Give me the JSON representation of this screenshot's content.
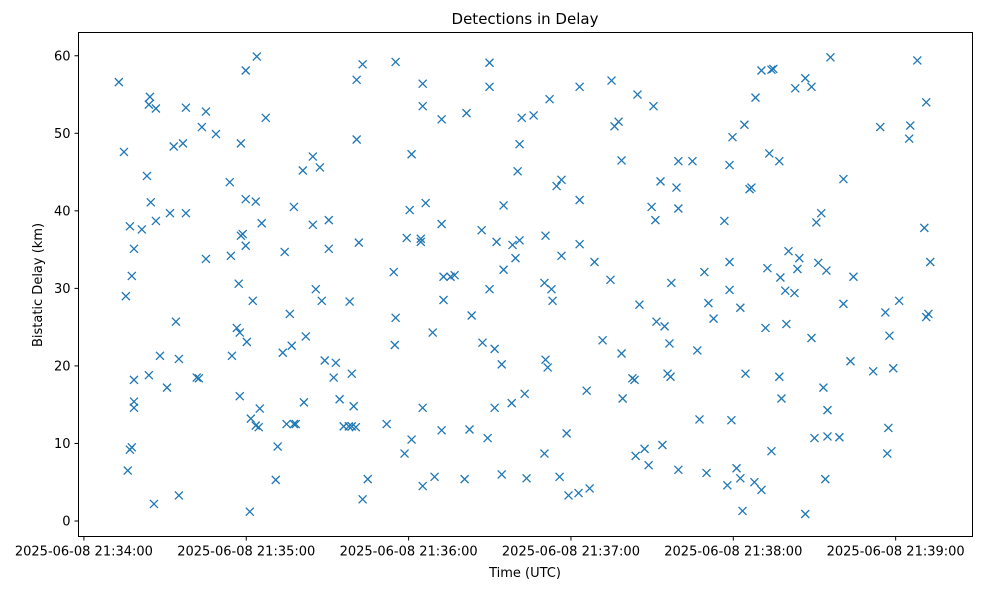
{
  "chart_data": {
    "type": "scatter",
    "title": "Detections in Delay",
    "xlabel": "Time (UTC)",
    "ylabel": "Bistatic Delay (km)",
    "x_origin": "2025-06-08 21:34:00",
    "x_units": "seconds since 2025-06-08 21:34:00",
    "xlim": [
      -2,
      328.4
    ],
    "ylim": [
      -2.0,
      63.0
    ],
    "grid": false,
    "marker": "x",
    "color": "#1f77b4",
    "x_ticks": [
      {
        "value": 0,
        "label": "2025-06-08 21:34:00"
      },
      {
        "value": 60,
        "label": "2025-06-08 21:35:00"
      },
      {
        "value": 120,
        "label": "2025-06-08 21:36:00"
      },
      {
        "value": 180,
        "label": "2025-06-08 21:37:00"
      },
      {
        "value": 240,
        "label": "2025-06-08 21:38:00"
      },
      {
        "value": 300,
        "label": "2025-06-08 21:39:00"
      }
    ],
    "y_ticks": [
      {
        "value": 0,
        "label": "0"
      },
      {
        "value": 10,
        "label": "10"
      },
      {
        "value": 20,
        "label": "20"
      },
      {
        "value": 30,
        "label": "30"
      },
      {
        "value": 40,
        "label": "40"
      },
      {
        "value": 50,
        "label": "50"
      },
      {
        "value": 60,
        "label": "60"
      }
    ],
    "points": [
      [
        12.9,
        56.6
      ],
      [
        14.8,
        47.6
      ],
      [
        15.5,
        29.0
      ],
      [
        16.2,
        6.5
      ],
      [
        17.0,
        38.0
      ],
      [
        17.0,
        9.2
      ],
      [
        17.7,
        31.6
      ],
      [
        17.7,
        9.5
      ],
      [
        18.5,
        35.1
      ],
      [
        18.5,
        18.2
      ],
      [
        18.5,
        15.4
      ],
      [
        18.5,
        14.6
      ],
      [
        21.4,
        37.6
      ],
      [
        23.3,
        44.5
      ],
      [
        24.4,
        54.7
      ],
      [
        24.0,
        53.7
      ],
      [
        24.7,
        41.1
      ],
      [
        24.0,
        18.8
      ],
      [
        25.9,
        2.2
      ],
      [
        26.6,
        53.2
      ],
      [
        26.6,
        38.7
      ],
      [
        28.1,
        21.3
      ],
      [
        30.7,
        17.2
      ],
      [
        31.8,
        39.7
      ],
      [
        33.2,
        48.3
      ],
      [
        34.0,
        25.7
      ],
      [
        35.1,
        20.9
      ],
      [
        35.1,
        3.3
      ],
      [
        36.6,
        48.7
      ],
      [
        37.7,
        39.7
      ],
      [
        37.7,
        53.3
      ],
      [
        41.7,
        18.5
      ],
      [
        42.5,
        18.4
      ],
      [
        43.6,
        50.8
      ],
      [
        45.1,
        52.8
      ],
      [
        45.1,
        33.8
      ],
      [
        48.8,
        49.9
      ],
      [
        53.9,
        43.7
      ],
      [
        54.3,
        34.2
      ],
      [
        54.7,
        21.3
      ],
      [
        56.5,
        24.9
      ],
      [
        57.2,
        30.6
      ],
      [
        57.6,
        24.3
      ],
      [
        57.6,
        16.1
      ],
      [
        58.0,
        48.7
      ],
      [
        58.0,
        36.8
      ],
      [
        58.7,
        37.0
      ],
      [
        59.8,
        58.1
      ],
      [
        59.8,
        41.5
      ],
      [
        59.8,
        35.5
      ],
      [
        60.2,
        23.1
      ],
      [
        61.3,
        1.2
      ],
      [
        61.7,
        13.2
      ],
      [
        62.4,
        28.4
      ],
      [
        63.5,
        12.3
      ],
      [
        63.5,
        41.2
      ],
      [
        63.9,
        59.9
      ],
      [
        64.6,
        12.1
      ],
      [
        65.0,
        14.5
      ],
      [
        65.7,
        38.4
      ],
      [
        67.2,
        52.0
      ],
      [
        70.9,
        5.3
      ],
      [
        71.6,
        9.6
      ],
      [
        73.5,
        21.7
      ],
      [
        74.2,
        34.7
      ],
      [
        74.9,
        12.5
      ],
      [
        76.1,
        26.7
      ],
      [
        76.8,
        22.6
      ],
      [
        77.6,
        40.5
      ],
      [
        77.6,
        12.5
      ],
      [
        78.3,
        12.5
      ],
      [
        80.9,
        45.2
      ],
      [
        81.3,
        15.3
      ],
      [
        82.0,
        23.8
      ],
      [
        84.6,
        47.0
      ],
      [
        84.6,
        38.2
      ],
      [
        85.7,
        29.9
      ],
      [
        87.2,
        45.6
      ],
      [
        87.9,
        28.4
      ],
      [
        89.0,
        20.7
      ],
      [
        90.5,
        35.1
      ],
      [
        90.5,
        38.8
      ],
      [
        92.3,
        18.5
      ],
      [
        93.1,
        20.4
      ],
      [
        94.5,
        15.7
      ],
      [
        96.0,
        12.2
      ],
      [
        97.9,
        12.2
      ],
      [
        98.2,
        28.3
      ],
      [
        99.0,
        19.0
      ],
      [
        99.7,
        14.8
      ],
      [
        99.0,
        12.2
      ],
      [
        100.5,
        12.1
      ],
      [
        100.8,
        49.2
      ],
      [
        100.8,
        56.9
      ],
      [
        101.6,
        35.9
      ],
      [
        103.0,
        2.8
      ],
      [
        103.0,
        58.9
      ],
      [
        104.9,
        5.4
      ],
      [
        111.9,
        12.5
      ],
      [
        114.5,
        32.1
      ],
      [
        114.9,
        22.7
      ],
      [
        115.2,
        26.2
      ],
      [
        115.2,
        59.2
      ],
      [
        118.5,
        8.7
      ],
      [
        119.3,
        36.5
      ],
      [
        120.4,
        40.1
      ],
      [
        121.1,
        47.3
      ],
      [
        121.1,
        10.5
      ],
      [
        124.5,
        36.4
      ],
      [
        124.5,
        36.0
      ],
      [
        125.2,
        56.4
      ],
      [
        125.2,
        53.5
      ],
      [
        125.2,
        14.6
      ],
      [
        125.2,
        4.5
      ],
      [
        126.3,
        41.0
      ],
      [
        128.9,
        24.3
      ],
      [
        129.6,
        5.7
      ],
      [
        132.2,
        51.8
      ],
      [
        132.2,
        38.3
      ],
      [
        132.2,
        11.7
      ],
      [
        132.9,
        31.5
      ],
      [
        132.9,
        28.5
      ],
      [
        135.5,
        31.5
      ],
      [
        137.0,
        31.7
      ],
      [
        140.7,
        5.4
      ],
      [
        141.4,
        52.6
      ],
      [
        142.5,
        11.8
      ],
      [
        143.3,
        26.5
      ],
      [
        147.0,
        37.5
      ],
      [
        147.3,
        23.0
      ],
      [
        149.2,
        10.7
      ],
      [
        149.9,
        59.1
      ],
      [
        149.9,
        56.0
      ],
      [
        149.9,
        29.9
      ],
      [
        151.8,
        22.2
      ],
      [
        151.8,
        14.6
      ],
      [
        152.5,
        36.0
      ],
      [
        154.4,
        6.0
      ],
      [
        154.4,
        20.2
      ],
      [
        155.1,
        32.4
      ],
      [
        155.1,
        40.7
      ],
      [
        158.1,
        15.2
      ],
      [
        158.4,
        35.6
      ],
      [
        159.5,
        33.9
      ],
      [
        160.3,
        45.1
      ],
      [
        161.0,
        48.6
      ],
      [
        161.0,
        36.2
      ],
      [
        161.8,
        52.0
      ],
      [
        162.9,
        16.4
      ],
      [
        163.6,
        5.5
      ],
      [
        166.2,
        52.3
      ],
      [
        170.2,
        8.7
      ],
      [
        170.2,
        30.7
      ],
      [
        170.6,
        36.8
      ],
      [
        170.6,
        20.8
      ],
      [
        171.4,
        19.8
      ],
      [
        172.1,
        54.4
      ],
      [
        172.8,
        29.9
      ],
      [
        173.2,
        28.4
      ],
      [
        174.7,
        43.2
      ],
      [
        175.8,
        5.7
      ],
      [
        176.5,
        44.0
      ],
      [
        176.5,
        34.2
      ],
      [
        178.4,
        11.3
      ],
      [
        179.1,
        3.3
      ],
      [
        182.8,
        3.6
      ],
      [
        183.2,
        56.0
      ],
      [
        183.2,
        41.4
      ],
      [
        183.2,
        35.7
      ],
      [
        185.8,
        16.8
      ],
      [
        186.9,
        4.2
      ],
      [
        188.7,
        33.4
      ],
      [
        191.7,
        23.3
      ],
      [
        194.6,
        31.1
      ],
      [
        195.0,
        56.8
      ],
      [
        196.1,
        50.9
      ],
      [
        197.6,
        51.5
      ],
      [
        198.7,
        46.5
      ],
      [
        198.7,
        21.6
      ],
      [
        199.1,
        15.8
      ],
      [
        202.7,
        18.4
      ],
      [
        203.5,
        18.2
      ],
      [
        203.9,
        8.4
      ],
      [
        204.6,
        55.0
      ],
      [
        205.3,
        27.9
      ],
      [
        207.2,
        9.3
      ],
      [
        208.7,
        7.2
      ],
      [
        209.8,
        40.5
      ],
      [
        210.5,
        53.5
      ],
      [
        211.2,
        38.8
      ],
      [
        211.6,
        25.7
      ],
      [
        213.1,
        43.8
      ],
      [
        213.8,
        9.8
      ],
      [
        214.6,
        25.1
      ],
      [
        215.7,
        19.0
      ],
      [
        216.4,
        22.9
      ],
      [
        216.8,
        18.6
      ],
      [
        217.1,
        30.7
      ],
      [
        219.0,
        43.0
      ],
      [
        219.7,
        46.4
      ],
      [
        219.7,
        40.3
      ],
      [
        219.7,
        6.6
      ],
      [
        224.9,
        46.4
      ],
      [
        226.7,
        22.0
      ],
      [
        227.5,
        13.1
      ],
      [
        229.3,
        32.1
      ],
      [
        230.1,
        6.2
      ],
      [
        230.8,
        28.1
      ],
      [
        232.7,
        26.1
      ],
      [
        236.7,
        38.7
      ],
      [
        237.8,
        4.6
      ],
      [
        238.6,
        45.9
      ],
      [
        238.6,
        33.4
      ],
      [
        238.6,
        29.8
      ],
      [
        239.3,
        13.0
      ],
      [
        239.7,
        49.5
      ],
      [
        241.2,
        6.8
      ],
      [
        242.6,
        27.5
      ],
      [
        242.6,
        5.5
      ],
      [
        243.4,
        1.3
      ],
      [
        244.1,
        51.1
      ],
      [
        244.5,
        19.0
      ],
      [
        246.0,
        42.8
      ],
      [
        246.7,
        43.0
      ],
      [
        248.2,
        54.6
      ],
      [
        247.8,
        5.0
      ],
      [
        250.4,
        58.1
      ],
      [
        250.4,
        4.0
      ],
      [
        251.9,
        24.9
      ],
      [
        252.6,
        32.6
      ],
      [
        253.3,
        47.4
      ],
      [
        254.1,
        58.2
      ],
      [
        254.8,
        58.3
      ],
      [
        254.1,
        9.0
      ],
      [
        257.0,
        46.4
      ],
      [
        257.4,
        31.4
      ],
      [
        257.0,
        18.6
      ],
      [
        257.8,
        15.8
      ],
      [
        259.2,
        29.7
      ],
      [
        259.6,
        25.4
      ],
      [
        260.4,
        34.8
      ],
      [
        262.6,
        29.4
      ],
      [
        262.9,
        55.8
      ],
      [
        263.7,
        32.5
      ],
      [
        264.4,
        33.9
      ],
      [
        266.6,
        0.9
      ],
      [
        266.6,
        57.1
      ],
      [
        268.9,
        56.0
      ],
      [
        268.9,
        23.6
      ],
      [
        270.0,
        10.7
      ],
      [
        270.7,
        38.5
      ],
      [
        271.4,
        33.3
      ],
      [
        272.5,
        39.7
      ],
      [
        273.3,
        17.2
      ],
      [
        274.0,
        5.4
      ],
      [
        274.4,
        32.3
      ],
      [
        274.8,
        14.3
      ],
      [
        274.8,
        10.9
      ],
      [
        275.9,
        59.8
      ],
      [
        279.2,
        10.8
      ],
      [
        280.7,
        28.0
      ],
      [
        280.7,
        44.1
      ],
      [
        283.3,
        20.6
      ],
      [
        284.4,
        31.5
      ],
      [
        291.7,
        19.3
      ],
      [
        294.3,
        50.8
      ],
      [
        296.2,
        26.9
      ],
      [
        296.9,
        8.7
      ],
      [
        297.3,
        12.0
      ],
      [
        297.7,
        23.9
      ],
      [
        299.1,
        19.7
      ],
      [
        301.3,
        28.4
      ],
      [
        305.0,
        49.3
      ],
      [
        305.4,
        51.0
      ],
      [
        308.0,
        59.4
      ],
      [
        310.6,
        37.8
      ],
      [
        311.3,
        54.0
      ],
      [
        311.3,
        26.3
      ],
      [
        312.1,
        26.7
      ],
      [
        312.8,
        33.4
      ]
    ]
  }
}
